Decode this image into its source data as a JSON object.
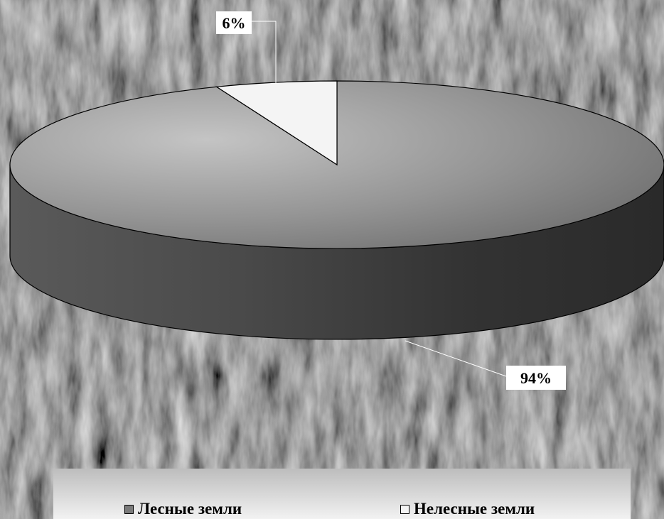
{
  "chart_data": {
    "type": "pie",
    "style": "3d",
    "title": "",
    "slices": [
      {
        "label": "Лесные земли",
        "value": 94,
        "display": "94%",
        "color": "#7a7a7a"
      },
      {
        "label": "Нелесные земли",
        "value": 6,
        "display": "6%",
        "color": "#f4f4f4"
      }
    ],
    "legend_position": "bottom"
  },
  "legend": {
    "items": [
      {
        "label": "Лесные земли",
        "color": "#7a7a7a"
      },
      {
        "label": "Нелесные земли",
        "color": "#f4f4f4"
      }
    ]
  },
  "background": {
    "description_icon": "aerial-forest-photo-background"
  }
}
